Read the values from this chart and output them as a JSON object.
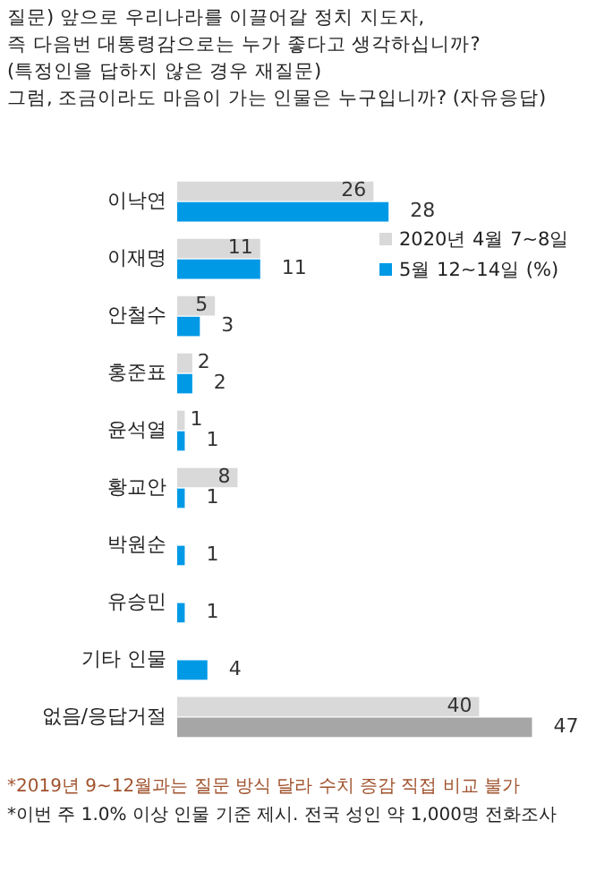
{
  "chart_data": {
    "type": "bar",
    "orientation": "horizontal",
    "title": "질문) 앞으로 우리나라를 이끌어갈 정치 지도자,\n즉 다음번 대통령감으로는 누가 좋다고 생각하십니까?\n(특정인을 답하지 않은 경우 재질문)\n그럼, 조금이라도 마음이 가는 인물은 누구입니까? (자유응답)",
    "categories": [
      "이낙연",
      "이재명",
      "안철수",
      "홍준표",
      "윤석열",
      "황교안",
      "박원순",
      "유승민",
      "기타 인물",
      "없음/응답거절"
    ],
    "series": [
      {
        "name": "2020년 4월 7~8일",
        "color": "#d9d9d9",
        "values": [
          26,
          11,
          5,
          2,
          1,
          8,
          null,
          null,
          null,
          40
        ]
      },
      {
        "name": "5월 12~14일 (%)",
        "color": "#0099e6",
        "colors": [
          "#0099e6",
          "#0099e6",
          "#0099e6",
          "#0099e6",
          "#0099e6",
          "#0099e6",
          "#0099e6",
          "#0099e6",
          "#0099e6",
          "#a6a6a6"
        ],
        "values": [
          28,
          11,
          3,
          2,
          1,
          1,
          1,
          1,
          4,
          47
        ]
      }
    ],
    "data_labels": true,
    "legend": "top right",
    "grid": false,
    "annotations": [
      "*2019년 9~12월과는 질문 방식 달라 수치 증감 직접 비교 불가",
      "*이번 주 1.0% 이상 인물 기준 제시. 전국 성인 약 1,000명 전화조사"
    ]
  }
}
